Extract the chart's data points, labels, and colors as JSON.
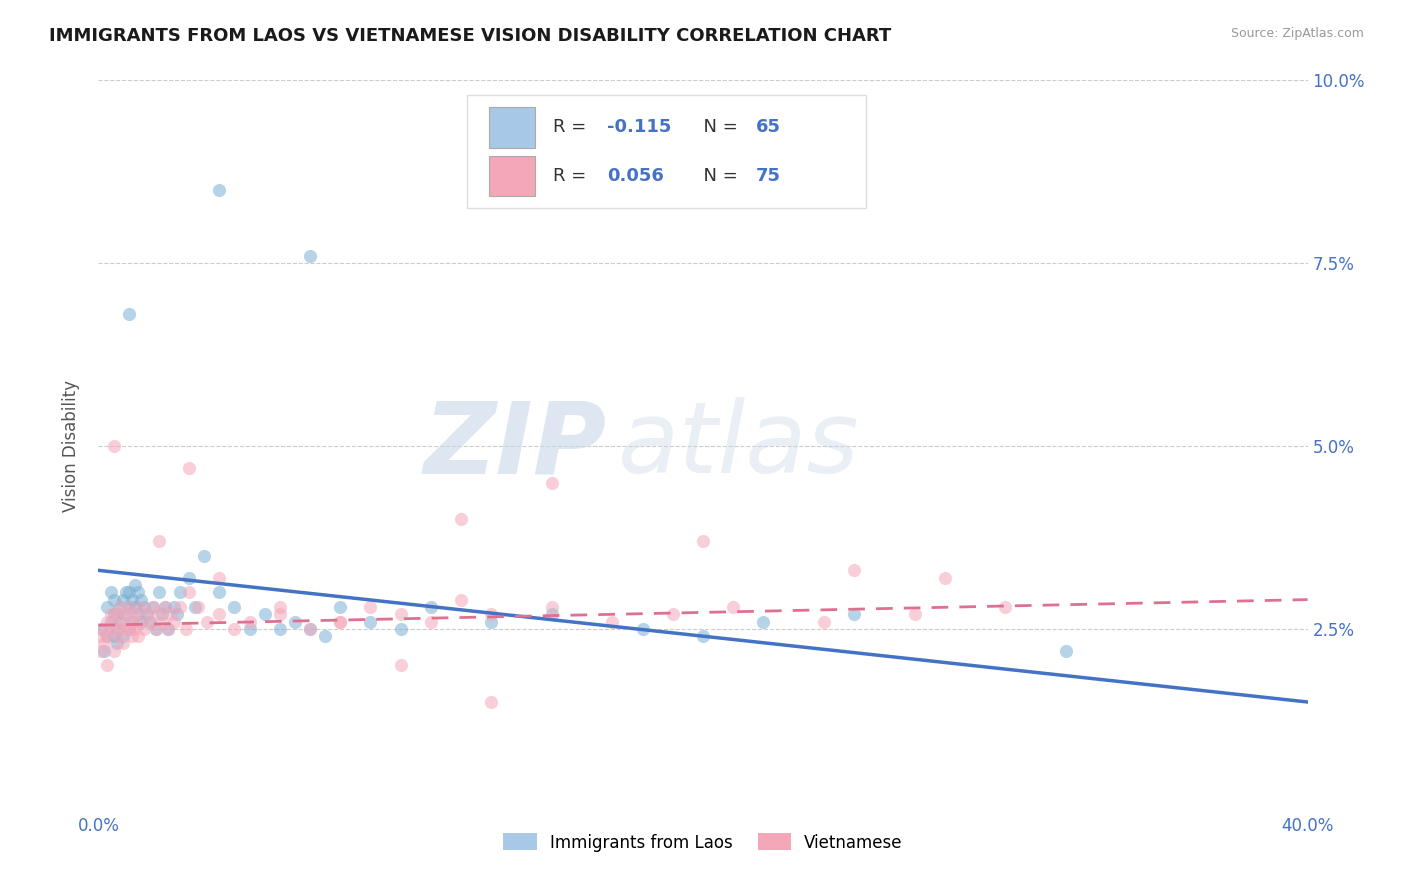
{
  "title": "IMMIGRANTS FROM LAOS VS VIETNAMESE VISION DISABILITY CORRELATION CHART",
  "source": "Source: ZipAtlas.com",
  "ylabel": "Vision Disability",
  "xlim": [
    0.0,
    0.4
  ],
  "ylim": [
    0.0,
    0.1
  ],
  "xticks": [
    0.0,
    0.05,
    0.1,
    0.15,
    0.2,
    0.25,
    0.3,
    0.35,
    0.4
  ],
  "yticks": [
    0.0,
    0.025,
    0.05,
    0.075,
    0.1
  ],
  "yticklabels_right": [
    "",
    "2.5%",
    "5.0%",
    "7.5%",
    "10.0%"
  ],
  "watermark_zip": "ZIP",
  "watermark_atlas": "atlas",
  "laos_color": "#7bafd4",
  "laos_legend_color": "#a8c8e8",
  "viet_color": "#f4a7b9",
  "viet_legend_color": "#f4a7b9",
  "line_laos_color": "#4472c4",
  "line_viet_color": "#e07090",
  "background_color": "#ffffff",
  "grid_color": "#cccccc",
  "title_color": "#1a1a1a",
  "axis_label_color": "#555555",
  "tick_color": "#4472c4",
  "source_color": "#999999",
  "laos_line_y0": 0.033,
  "laos_line_y1": 0.015,
  "viet_line_y0": 0.0255,
  "viet_line_y1": 0.029,
  "laos_scatter": {
    "x": [
      0.001,
      0.002,
      0.003,
      0.003,
      0.004,
      0.004,
      0.005,
      0.005,
      0.005,
      0.006,
      0.006,
      0.006,
      0.007,
      0.007,
      0.008,
      0.008,
      0.009,
      0.009,
      0.01,
      0.01,
      0.01,
      0.011,
      0.011,
      0.012,
      0.012,
      0.013,
      0.013,
      0.014,
      0.014,
      0.015,
      0.016,
      0.017,
      0.018,
      0.019,
      0.02,
      0.021,
      0.022,
      0.023,
      0.025,
      0.026,
      0.027,
      0.03,
      0.032,
      0.035,
      0.04,
      0.045,
      0.05,
      0.055,
      0.06,
      0.065,
      0.07,
      0.075,
      0.08,
      0.09,
      0.1,
      0.11,
      0.13,
      0.15,
      0.18,
      0.2,
      0.22,
      0.25,
      0.32,
      0.01,
      0.04,
      0.07
    ],
    "y": [
      0.025,
      0.022,
      0.028,
      0.024,
      0.03,
      0.026,
      0.027,
      0.024,
      0.029,
      0.025,
      0.027,
      0.023,
      0.028,
      0.026,
      0.029,
      0.024,
      0.03,
      0.027,
      0.028,
      0.025,
      0.03,
      0.029,
      0.026,
      0.031,
      0.028,
      0.03,
      0.027,
      0.029,
      0.026,
      0.028,
      0.027,
      0.026,
      0.028,
      0.025,
      0.03,
      0.027,
      0.028,
      0.025,
      0.028,
      0.027,
      0.03,
      0.032,
      0.028,
      0.035,
      0.03,
      0.028,
      0.025,
      0.027,
      0.025,
      0.026,
      0.025,
      0.024,
      0.028,
      0.026,
      0.025,
      0.028,
      0.026,
      0.027,
      0.025,
      0.024,
      0.026,
      0.027,
      0.022,
      0.068,
      0.085,
      0.076
    ]
  },
  "viet_scatter": {
    "x": [
      0.001,
      0.001,
      0.002,
      0.002,
      0.003,
      0.003,
      0.004,
      0.004,
      0.005,
      0.005,
      0.006,
      0.006,
      0.007,
      0.007,
      0.008,
      0.008,
      0.009,
      0.009,
      0.01,
      0.01,
      0.011,
      0.011,
      0.012,
      0.012,
      0.013,
      0.013,
      0.014,
      0.015,
      0.016,
      0.017,
      0.018,
      0.019,
      0.02,
      0.021,
      0.022,
      0.023,
      0.024,
      0.025,
      0.027,
      0.029,
      0.03,
      0.033,
      0.036,
      0.04,
      0.045,
      0.05,
      0.06,
      0.07,
      0.08,
      0.09,
      0.1,
      0.11,
      0.12,
      0.13,
      0.15,
      0.17,
      0.19,
      0.21,
      0.24,
      0.27,
      0.3,
      0.005,
      0.03,
      0.12,
      0.15,
      0.2,
      0.25,
      0.28,
      0.003,
      0.02,
      0.04,
      0.06,
      0.08,
      0.1,
      0.13
    ],
    "y": [
      0.024,
      0.022,
      0.025,
      0.023,
      0.026,
      0.024,
      0.027,
      0.025,
      0.026,
      0.022,
      0.027,
      0.024,
      0.028,
      0.025,
      0.026,
      0.023,
      0.027,
      0.025,
      0.028,
      0.025,
      0.026,
      0.024,
      0.027,
      0.025,
      0.026,
      0.024,
      0.028,
      0.025,
      0.027,
      0.026,
      0.028,
      0.025,
      0.027,
      0.026,
      0.028,
      0.025,
      0.027,
      0.026,
      0.028,
      0.025,
      0.03,
      0.028,
      0.026,
      0.027,
      0.025,
      0.026,
      0.027,
      0.025,
      0.026,
      0.028,
      0.027,
      0.026,
      0.029,
      0.027,
      0.028,
      0.026,
      0.027,
      0.028,
      0.026,
      0.027,
      0.028,
      0.05,
      0.047,
      0.04,
      0.045,
      0.037,
      0.033,
      0.032,
      0.02,
      0.037,
      0.032,
      0.028,
      0.026,
      0.02,
      0.015
    ]
  }
}
